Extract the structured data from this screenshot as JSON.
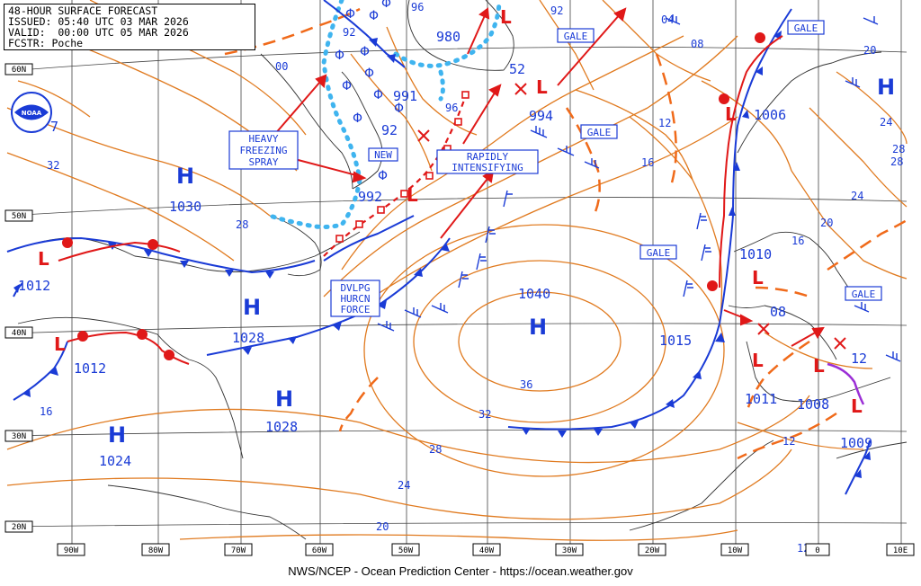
{
  "header": {
    "title": "48-HOUR SURFACE FORECAST",
    "issued": "ISSUED: 05:40 UTC 03 MAR 2026",
    "valid": "VALID:  00:00 UTC 05 MAR 2026",
    "forecaster": "FCSTR: Poche"
  },
  "footer": "NWS/NCEP - Ocean Prediction Center - https://ocean.weather.gov",
  "logo_text": "NOAA",
  "lat_labels": [
    "60N",
    "50N",
    "40N",
    "30N",
    "20N"
  ],
  "lon_labels": [
    "90W",
    "80W",
    "70W",
    "60W",
    "50W",
    "40W",
    "30W",
    "20W",
    "10W",
    "0",
    "10E"
  ],
  "highs": [
    {
      "label": "H",
      "pressure": "1030"
    },
    {
      "label": "H",
      "pressure": "1028"
    },
    {
      "label": "H",
      "pressure": "1028"
    },
    {
      "label": "H",
      "pressure": "1024"
    },
    {
      "label": "H",
      "pressure": "1040"
    },
    {
      "label": "H",
      "pressure": ""
    }
  ],
  "lows": [
    {
      "label": "L",
      "pressure": "980"
    },
    {
      "label": "L",
      "pressure": "52"
    },
    {
      "label": "L",
      "pressure": "992"
    },
    {
      "label": "L",
      "pressure": "1012"
    },
    {
      "label": "L",
      "pressure": "1012"
    },
    {
      "label": "L",
      "pressure": "1006"
    },
    {
      "label": "L",
      "pressure": "1010"
    },
    {
      "label": "L",
      "pressure": "1011"
    },
    {
      "label": "L",
      "pressure": "1008"
    },
    {
      "label": "L",
      "pressure": "1009"
    }
  ],
  "isobar_labels": [
    "96",
    "92",
    "00",
    "991",
    "92",
    "994",
    "32",
    "28",
    "04",
    "08",
    "12",
    "16",
    "20",
    "24",
    "28",
    "1015",
    "36",
    "32",
    "28",
    "24",
    "20",
    "16",
    "12",
    "08",
    "12",
    "12",
    "16",
    "20",
    "24",
    "28",
    "7",
    "96",
    "92"
  ],
  "annotations": {
    "heavy_freezing_spray": [
      "HEAVY",
      "FREEZING",
      "SPRAY"
    ],
    "new": "NEW",
    "rapidly_intensifying": [
      "RAPIDLY",
      "INTENSIFYING"
    ],
    "dvlpg_hurcn_force": [
      "DVLPG",
      "HURCN",
      "FORCE"
    ],
    "gale_boxes": [
      "GALE",
      "GALE",
      "GALE",
      "GALE",
      "GALE"
    ]
  },
  "colors": {
    "isobar": "#e07a1f",
    "front_cold": "#1a3bd6",
    "front_warm": "#e01818",
    "trough": "#f06a1a",
    "ice": "#3fb4ef",
    "arrow": "#e01818",
    "grid": "#1a1a1a",
    "high": "#1a3bd6",
    "low": "#e01818"
  }
}
